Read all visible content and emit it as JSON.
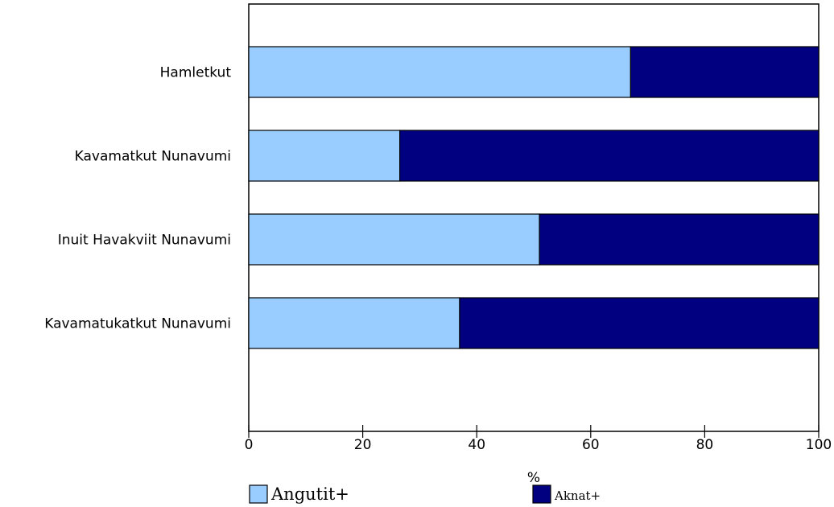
{
  "chart_data": {
    "type": "bar",
    "orientation": "horizontal",
    "stacked": true,
    "categories": [
      "Hamletkut",
      "Kavamatkut Nunavumi",
      "Inuit Havakviit Nunavumi",
      "Kavamatukatkut Nunavumi"
    ],
    "series": [
      {
        "name": "Angutit+",
        "color": "#99CCFF",
        "values": [
          67,
          26.5,
          51,
          37
        ]
      },
      {
        "name": "Aknat+",
        "color": "#000080",
        "values": [
          33,
          73.5,
          49,
          63
        ]
      }
    ],
    "xlabel": "%",
    "xlim": [
      0,
      100
    ],
    "xticks": [
      "0",
      "20",
      "40",
      "60",
      "80",
      "100"
    ],
    "legend_position": "bottom",
    "grid": false
  }
}
